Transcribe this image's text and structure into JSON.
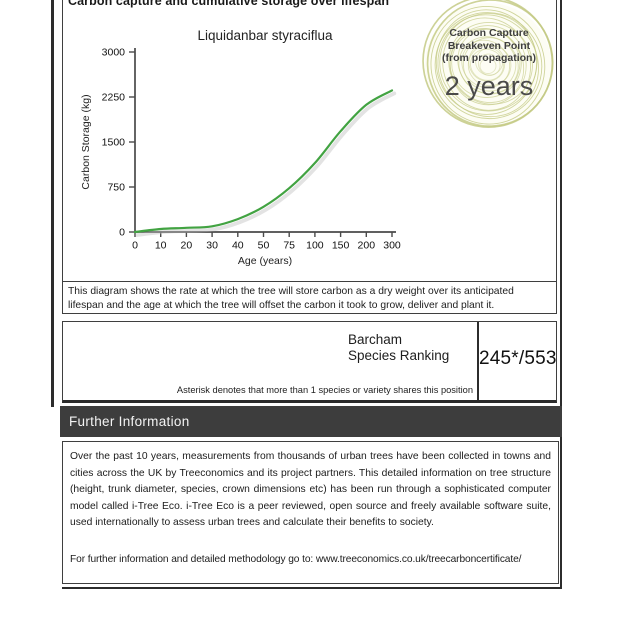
{
  "page": {
    "header_title": "Carbon capture and cumulative storage over lifespan"
  },
  "badge": {
    "line1": "Carbon Capture",
    "line2": "Breakeven Point",
    "line3": "(from propagation)",
    "value": "2 years",
    "ring_color": "#c3c983",
    "ring_fill": "#fdfdf4"
  },
  "chart_data": {
    "type": "line",
    "title": "Liquidanbar styraciflua",
    "xlabel": "Age (years)",
    "ylabel": "Carbon Storage (kg)",
    "x_ticks": [
      "0",
      "10",
      "20",
      "30",
      "40",
      "50",
      "75",
      "100",
      "150",
      "200",
      "300"
    ],
    "y_ticks": [
      "0",
      "750",
      "1500",
      "2250",
      "3000"
    ],
    "ylim": [
      0,
      3000
    ],
    "x_axis_note": "tick labels are evenly spaced (non-linear age scale)",
    "grid": "off",
    "legend": "none",
    "line_color": "#42a342",
    "series": [
      {
        "name": "Cumulative carbon storage (kg)",
        "x": [
          0,
          10,
          20,
          30,
          40,
          50,
          75,
          100,
          150,
          200,
          300
        ],
        "values": [
          0,
          50,
          70,
          95,
          215,
          420,
          730,
          1150,
          1680,
          2120,
          2360
        ]
      }
    ]
  },
  "description": "This diagram shows the rate at which the tree will store carbon as a dry weight over its anticipated lifespan and the age at which the tree will offset the carbon it took to grow, deliver and plant it.",
  "ranking": {
    "label_line1": "Barcham",
    "label_line2": "Species Ranking",
    "value": "245*/553",
    "footnote": "Asterisk denotes that more than 1 species or variety shares this position"
  },
  "further_info": {
    "header": "Further Information",
    "paragraph": "Over the past 10 years, measurements from thousands of urban trees have been collected in towns and cities across the UK by Treeconomics and its project partners. This detailed information on tree structure (height, trunk diameter, species, crown dimensions etc) has been run through a sophisticated computer model called i-Tree Eco. i-Tree Eco is a peer reviewed, open source and freely available software suite, used internationally to assess urban trees and calculate their benefits to society.",
    "link_line": "For further information and detailed methodology go to: www.treeconomics.co.uk/treecarboncertificate/"
  }
}
